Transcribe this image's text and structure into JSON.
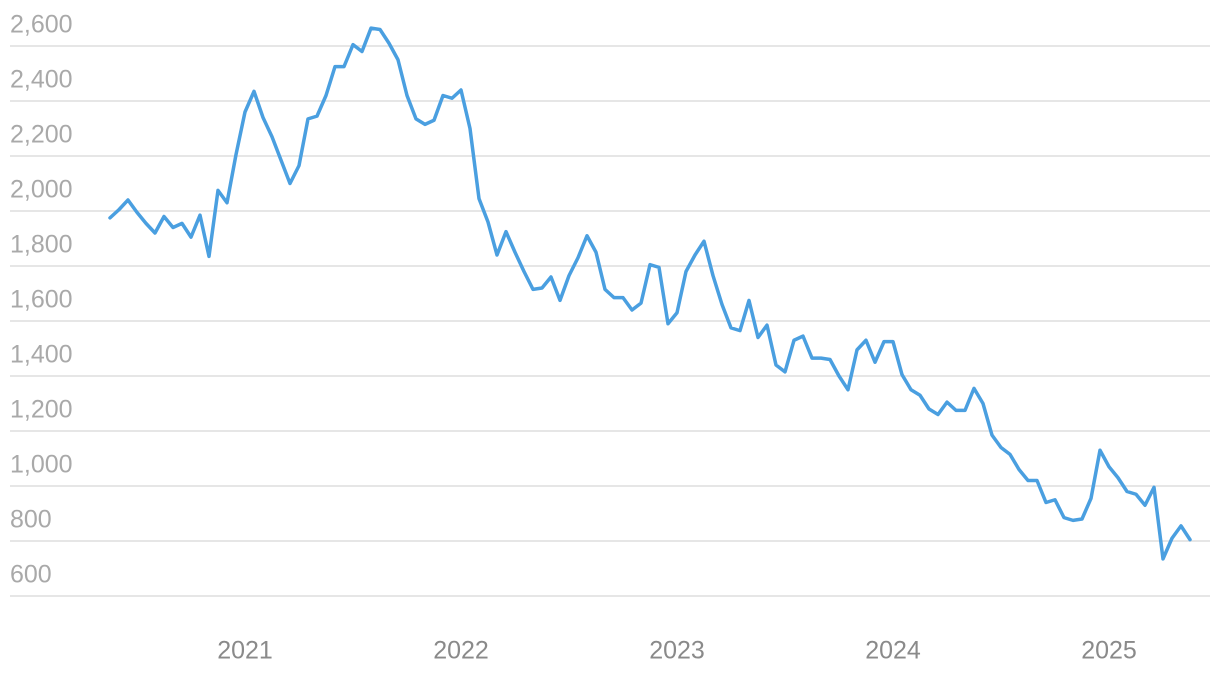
{
  "chart_data": {
    "type": "line",
    "categories": [
      null,
      null,
      null,
      null,
      null,
      null,
      null,
      null,
      null,
      null,
      null,
      null,
      null,
      null,
      null,
      "2021",
      null,
      null,
      null,
      null,
      null,
      null,
      null,
      null,
      null,
      null,
      null,
      null,
      null,
      null,
      null,
      null,
      null,
      null,
      null,
      null,
      null,
      null,
      null,
      "2022",
      null,
      null,
      null,
      null,
      null,
      null,
      null,
      null,
      null,
      null,
      null,
      null,
      null,
      null,
      null,
      null,
      null,
      null,
      null,
      null,
      null,
      null,
      null,
      "2023",
      null,
      null,
      null,
      null,
      null,
      null,
      null,
      null,
      null,
      null,
      null,
      null,
      null,
      null,
      null,
      null,
      null,
      null,
      null,
      null,
      null,
      null,
      null,
      "2024",
      null,
      null,
      null,
      null,
      null,
      null,
      null,
      null,
      null,
      null,
      null,
      null,
      null,
      null,
      null,
      null,
      null,
      null,
      null,
      null,
      null,
      null,
      null,
      "2025",
      null,
      null,
      null,
      null,
      null,
      null,
      null,
      null,
      null
    ],
    "values": [
      1975,
      2005,
      2040,
      1995,
      1955,
      1920,
      1980,
      1940,
      1955,
      1905,
      1985,
      1835,
      2075,
      2030,
      2205,
      2360,
      2435,
      2340,
      2270,
      2185,
      2100,
      2165,
      2335,
      2345,
      2420,
      2525,
      2525,
      2605,
      2580,
      2665,
      2660,
      2610,
      2550,
      2420,
      2335,
      2315,
      2330,
      2420,
      2410,
      2440,
      2300,
      2045,
      1960,
      1840,
      1925,
      1850,
      1780,
      1715,
      1720,
      1760,
      1675,
      1765,
      1830,
      1910,
      1850,
      1715,
      1685,
      1685,
      1640,
      1665,
      1805,
      1795,
      1590,
      1630,
      1780,
      1840,
      1890,
      1765,
      1660,
      1575,
      1565,
      1675,
      1540,
      1585,
      1440,
      1415,
      1530,
      1545,
      1465,
      1465,
      1460,
      1400,
      1350,
      1495,
      1530,
      1450,
      1525,
      1525,
      1405,
      1350,
      1330,
      1280,
      1260,
      1305,
      1275,
      1275,
      1355,
      1300,
      1185,
      1140,
      1115,
      1060,
      1020,
      1020,
      940,
      950,
      885,
      875,
      880,
      955,
      1130,
      1070,
      1030,
      980,
      970,
      930,
      995,
      735,
      810,
      855,
      805
    ],
    "color": "#4a9fe0",
    "ylim": [
      600,
      2600
    ],
    "yticks": [
      600,
      800,
      {
        "value": 1000,
        "label": "1,000"
      },
      {
        "value": 1200,
        "label": "1,200"
      },
      {
        "value": 1400,
        "label": "1,400"
      },
      {
        "value": 1600,
        "label": "1,600"
      },
      {
        "value": 1800,
        "label": "1,800"
      },
      {
        "value": 2000,
        "label": "2,000"
      },
      {
        "value": 2200,
        "label": "2,200"
      },
      {
        "value": 2400,
        "label": "2,400"
      },
      {
        "value": 2600,
        "label": "2,600"
      }
    ],
    "grid": true
  }
}
